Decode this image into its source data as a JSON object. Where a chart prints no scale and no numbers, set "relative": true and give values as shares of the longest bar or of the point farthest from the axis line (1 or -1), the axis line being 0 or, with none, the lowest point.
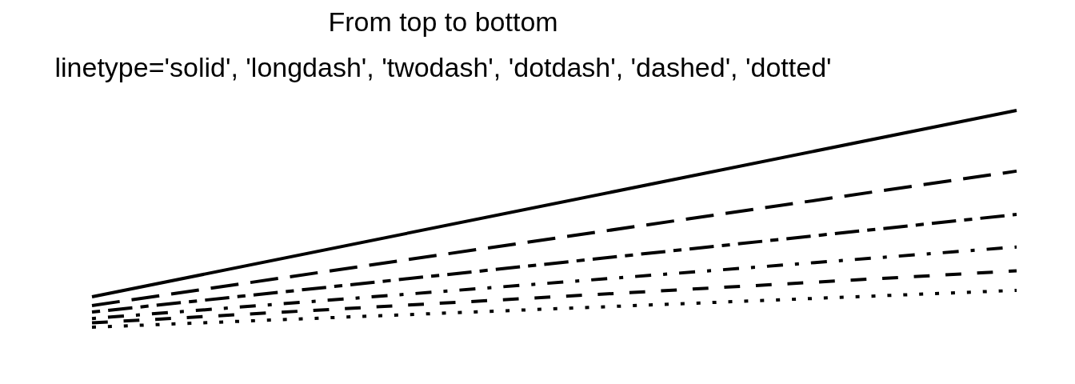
{
  "chart_data": {
    "type": "line",
    "title": "From top to bottom",
    "subtitle": "linetype='solid', 'longdash', 'twodash', 'dotdash', 'dashed', 'dotted'",
    "categories": [
      null,
      null
    ],
    "relative": true,
    "series": [
      {
        "color": "#000000",
        "line_style": "solid",
        "values": [
          0.14,
          1
        ]
      },
      {
        "color": "#000000",
        "line_style": "longdash",
        "values": [
          0.1,
          0.72
        ]
      },
      {
        "color": "#000000",
        "line_style": "twodash",
        "values": [
          0.07,
          0.52
        ]
      },
      {
        "color": "#000000",
        "line_style": "dotdash",
        "values": [
          0.04,
          0.37
        ]
      },
      {
        "color": "#000000",
        "line_style": "dashed",
        "values": [
          0.02,
          0.26
        ]
      },
      {
        "color": "#000000",
        "line_style": "dotted",
        "values": [
          0,
          0.17
        ]
      }
    ]
  }
}
